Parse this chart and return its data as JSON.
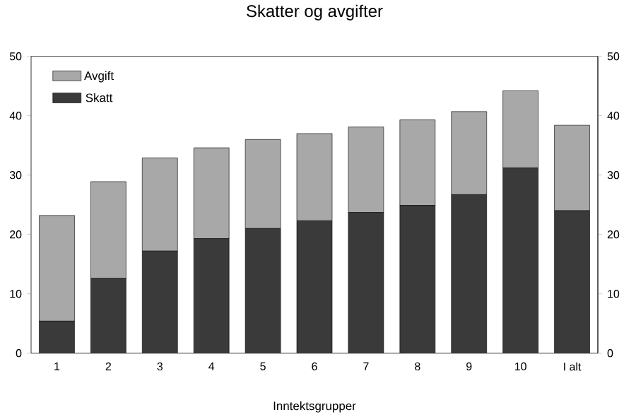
{
  "chart_data": {
    "type": "bar",
    "title": "Skatter og avgifter",
    "xlabel": "Inntektsgrupper",
    "categories": [
      "1",
      "2",
      "3",
      "4",
      "5",
      "6",
      "7",
      "8",
      "9",
      "10",
      "I alt"
    ],
    "stacked": true,
    "series": [
      {
        "name": "Skatt",
        "color": "#3a3a3a",
        "values": [
          5.4,
          12.6,
          17.2,
          19.3,
          21.0,
          22.3,
          23.7,
          24.9,
          26.7,
          31.2,
          24.0
        ]
      },
      {
        "name": "Avgift",
        "color": "#a8a8a8",
        "values": [
          17.8,
          16.3,
          15.7,
          15.3,
          15.0,
          14.7,
          14.4,
          14.4,
          14.0,
          13.0,
          14.4
        ]
      }
    ],
    "ylim": [
      0,
      50
    ],
    "yticks": [
      0,
      10,
      20,
      30,
      40,
      50
    ],
    "y2lim": [
      0,
      50
    ],
    "y2ticks": [
      0,
      10,
      20,
      30,
      40,
      50
    ],
    "legend": "top left"
  }
}
